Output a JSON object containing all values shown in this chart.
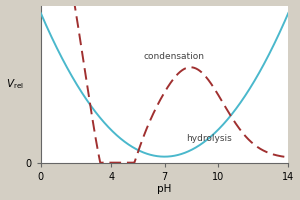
{
  "title": "",
  "xlabel": "pH",
  "xlim": [
    0,
    14
  ],
  "ylim": [
    0,
    1.05
  ],
  "xticks": [
    0,
    4,
    7,
    10,
    14
  ],
  "yticks": [
    0
  ],
  "hydrolysis_color": "#4ab8cc",
  "condensation_color": "#a03030",
  "background_color": "#d4cfc4",
  "plot_bg_color": "#ffffff",
  "hydrolysis_label": "hydrolysis",
  "condensation_label": "condensation",
  "figsize": [
    3.0,
    2.0
  ],
  "dpi": 100
}
